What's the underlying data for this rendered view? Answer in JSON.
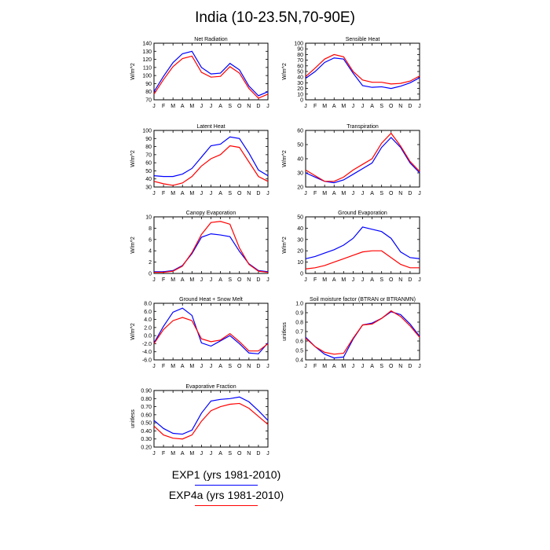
{
  "title": "India (10-23.5N,70-90E)",
  "legend": [
    {
      "label": "EXP1 (yrs 1981-2010)",
      "color": "#0000ff"
    },
    {
      "label": "EXP4a (yrs 1981-2010)",
      "color": "#ff0000"
    }
  ],
  "months": [
    "J",
    "F",
    "M",
    "A",
    "M",
    "J",
    "J",
    "A",
    "S",
    "O",
    "N",
    "D",
    "J"
  ],
  "chart_data": [
    {
      "type": "line",
      "title": "Net Radiation",
      "xlabel": "",
      "ylabel": "W/m^2",
      "ylim": [
        70,
        140
      ],
      "yticks": [
        70,
        80,
        90,
        100,
        110,
        120,
        130,
        140
      ],
      "ytick_labels": [
        "70",
        "80",
        "90",
        "100",
        "110",
        "120",
        "130",
        "140"
      ],
      "series": [
        {
          "name": "EXP1 (yrs 1981-2010)",
          "color": "#0000ff",
          "values": [
            80,
            99,
            116,
            127,
            130,
            110,
            102,
            103,
            115,
            107,
            87,
            75,
            80
          ]
        },
        {
          "name": "EXP4a (yrs 1981-2010)",
          "color": "#ff0000",
          "values": [
            77,
            95,
            111,
            121,
            124,
            104,
            98,
            99,
            111,
            103,
            84,
            72,
            77
          ]
        }
      ]
    },
    {
      "type": "line",
      "title": "Sensible Heat",
      "xlabel": "",
      "ylabel": "W/m^2",
      "ylim": [
        0,
        100
      ],
      "yticks": [
        0,
        10,
        20,
        30,
        40,
        50,
        60,
        70,
        80,
        90,
        100
      ],
      "ytick_labels": [
        "0",
        "10",
        "20",
        "30",
        "40",
        "50",
        "60",
        "70",
        "80",
        "90",
        "100"
      ],
      "series": [
        {
          "name": "EXP1 (yrs 1981-2010)",
          "color": "#0000ff",
          "values": [
            38,
            50,
            66,
            74,
            72,
            47,
            25,
            22,
            23,
            20,
            24,
            30,
            39
          ]
        },
        {
          "name": "EXP4a (yrs 1981-2010)",
          "color": "#ff0000",
          "values": [
            41,
            56,
            72,
            80,
            76,
            50,
            35,
            31,
            31,
            28,
            29,
            33,
            42
          ]
        }
      ]
    },
    {
      "type": "line",
      "title": "Latent Heat",
      "xlabel": "",
      "ylabel": "W/m^2",
      "ylim": [
        30,
        100
      ],
      "yticks": [
        30,
        40,
        50,
        60,
        70,
        80,
        90,
        100
      ],
      "ytick_labels": [
        "30",
        "40",
        "50",
        "60",
        "70",
        "80",
        "90",
        "100"
      ],
      "series": [
        {
          "name": "EXP1 (yrs 1981-2010)",
          "color": "#0000ff",
          "values": [
            44,
            43,
            43,
            46,
            53,
            67,
            81,
            83,
            92,
            90,
            72,
            51,
            44
          ]
        },
        {
          "name": "EXP4a (yrs 1981-2010)",
          "color": "#ff0000",
          "values": [
            37,
            34,
            32,
            35,
            43,
            56,
            65,
            70,
            81,
            79,
            61,
            43,
            37
          ]
        }
      ]
    },
    {
      "type": "line",
      "title": "Transpiration",
      "xlabel": "",
      "ylabel": "W/m^2",
      "ylim": [
        20,
        60
      ],
      "yticks": [
        20,
        30,
        40,
        50,
        60
      ],
      "ytick_labels": [
        "20",
        "30",
        "40",
        "50",
        "60"
      ],
      "series": [
        {
          "name": "EXP1 (yrs 1981-2010)",
          "color": "#0000ff",
          "values": [
            30,
            27,
            24,
            23,
            25,
            29,
            33,
            37,
            48,
            55,
            48,
            37,
            30
          ]
        },
        {
          "name": "EXP4a (yrs 1981-2010)",
          "color": "#ff0000",
          "values": [
            32,
            28,
            24,
            24,
            27,
            32,
            36,
            40,
            51,
            58,
            49,
            38,
            31
          ]
        }
      ]
    },
    {
      "type": "line",
      "title": "Canopy Evaporation",
      "xlabel": "",
      "ylabel": "W/m^2",
      "ylim": [
        0,
        10
      ],
      "yticks": [
        0,
        2,
        4,
        6,
        8,
        10
      ],
      "ytick_labels": [
        "0",
        "2",
        "4",
        "6",
        "8",
        "10"
      ],
      "series": [
        {
          "name": "EXP1 (yrs 1981-2010)",
          "color": "#0000ff",
          "values": [
            0.3,
            0.3,
            0.5,
            1.4,
            3.5,
            6.4,
            7.0,
            6.8,
            6.5,
            3.9,
            1.7,
            0.5,
            0.3
          ]
        },
        {
          "name": "EXP4a (yrs 1981-2010)",
          "color": "#ff0000",
          "values": [
            0.2,
            0.2,
            0.4,
            1.3,
            3.7,
            6.9,
            9.0,
            9.2,
            8.7,
            4.5,
            1.6,
            0.4,
            0.2
          ]
        }
      ]
    },
    {
      "type": "line",
      "title": "Ground Evaporation",
      "xlabel": "",
      "ylabel": "W/m^2",
      "ylim": [
        0,
        50
      ],
      "yticks": [
        0,
        10,
        20,
        30,
        40,
        50
      ],
      "ytick_labels": [
        "0",
        "10",
        "20",
        "30",
        "40",
        "50"
      ],
      "series": [
        {
          "name": "EXP1 (yrs 1981-2010)",
          "color": "#0000ff",
          "values": [
            13,
            15,
            18,
            21,
            25,
            31,
            41,
            39,
            37,
            31,
            19,
            14,
            13
          ]
        },
        {
          "name": "EXP4a (yrs 1981-2010)",
          "color": "#ff0000",
          "values": [
            4,
            5,
            7,
            10,
            13,
            16,
            19,
            20,
            20,
            14,
            8,
            5,
            5
          ]
        }
      ]
    },
    {
      "type": "line",
      "title": "Ground Heat + Snow Melt",
      "xlabel": "",
      "ylabel": "W/m^2",
      "ylim": [
        -6,
        8
      ],
      "yticks": [
        -6,
        -4,
        -2,
        0,
        2,
        4,
        6,
        8
      ],
      "ytick_labels": [
        "-6.0",
        "-4.0",
        "-2.0",
        "0.0",
        "2.0",
        "4.0",
        "6.0",
        "8.0"
      ],
      "series": [
        {
          "name": "EXP1 (yrs 1981-2010)",
          "color": "#0000ff",
          "values": [
            -1.8,
            2.3,
            5.8,
            6.8,
            5.0,
            -1.8,
            -2.6,
            -1.3,
            0.0,
            -2.0,
            -4.3,
            -4.5,
            -1.8
          ]
        },
        {
          "name": "EXP4a (yrs 1981-2010)",
          "color": "#ff0000",
          "values": [
            -2.0,
            1.5,
            3.7,
            4.5,
            3.7,
            -0.8,
            -1.5,
            -1.1,
            0.5,
            -1.5,
            -3.8,
            -3.8,
            -2.0
          ]
        }
      ]
    },
    {
      "type": "line",
      "title": "Soil moisture factor (BTRAN or BTRANMN)",
      "xlabel": "",
      "ylabel": "unitless",
      "ylim": [
        0.4,
        1.0
      ],
      "yticks": [
        0.4,
        0.5,
        0.6,
        0.7,
        0.8,
        0.9,
        1.0
      ],
      "ytick_labels": [
        "0.4",
        "0.5",
        "0.6",
        "0.7",
        "0.8",
        "0.9",
        "1.0"
      ],
      "series": [
        {
          "name": "EXP1 (yrs 1981-2010)",
          "color": "#0000ff",
          "values": [
            0.64,
            0.54,
            0.46,
            0.42,
            0.43,
            0.62,
            0.77,
            0.79,
            0.84,
            0.91,
            0.88,
            0.78,
            0.65
          ]
        },
        {
          "name": "EXP4a (yrs 1981-2010)",
          "color": "#ff0000",
          "values": [
            0.63,
            0.54,
            0.48,
            0.46,
            0.47,
            0.63,
            0.77,
            0.78,
            0.84,
            0.92,
            0.86,
            0.76,
            0.64
          ]
        }
      ]
    },
    {
      "type": "line",
      "title": "Evaporative Fraction",
      "xlabel": "",
      "ylabel": "unitless",
      "ylim": [
        0.2,
        0.9
      ],
      "yticks": [
        0.2,
        0.3,
        0.4,
        0.5,
        0.6,
        0.7,
        0.8,
        0.9
      ],
      "ytick_labels": [
        "0.20",
        "0.30",
        "0.40",
        "0.50",
        "0.60",
        "0.70",
        "0.80",
        "0.90"
      ],
      "series": [
        {
          "name": "EXP1 (yrs 1981-2010)",
          "color": "#0000ff",
          "values": [
            0.53,
            0.43,
            0.37,
            0.36,
            0.41,
            0.62,
            0.77,
            0.79,
            0.8,
            0.82,
            0.76,
            0.65,
            0.53
          ]
        },
        {
          "name": "EXP4a (yrs 1981-2010)",
          "color": "#ff0000",
          "values": [
            0.46,
            0.35,
            0.31,
            0.3,
            0.35,
            0.52,
            0.65,
            0.7,
            0.73,
            0.74,
            0.68,
            0.58,
            0.48
          ]
        }
      ]
    }
  ]
}
